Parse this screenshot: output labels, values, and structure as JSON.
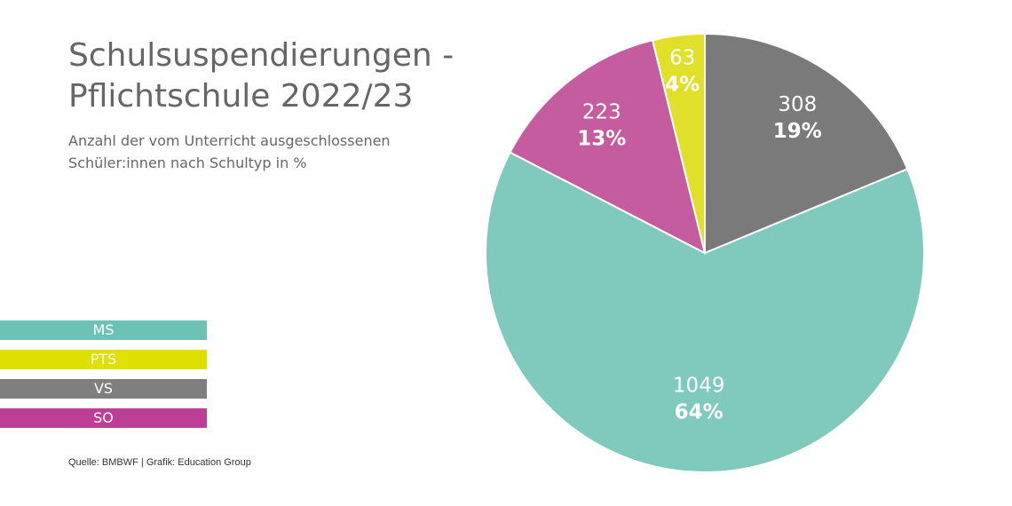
{
  "chart_data": {
    "type": "pie",
    "title": [
      "Schulsuspendierungen -",
      "Pflichtschule 2022/23"
    ],
    "subtitle": [
      "Anzahl der vom Unterricht ausgeschlossenen",
      "Schüler:innen nach Schultyp in %"
    ],
    "categories": [
      "MS",
      "PTS",
      "VS",
      "SO"
    ],
    "values": [
      1049,
      63,
      308,
      223
    ],
    "percent_labels": [
      "64%",
      "4%",
      "19%",
      "13%"
    ],
    "count_labels": [
      "1049",
      "63",
      "308",
      "223"
    ],
    "colors": [
      "#80c9bd",
      "#e0e02b",
      "#7a7a7a",
      "#c45c9f"
    ],
    "legend_colors": [
      "#6cc2b4",
      "#e0e000",
      "#7f7f7f",
      "#bc3f95"
    ],
    "legend_position": "left",
    "source": "Quelle: BMBWF  |  Grafik: Education Group"
  }
}
